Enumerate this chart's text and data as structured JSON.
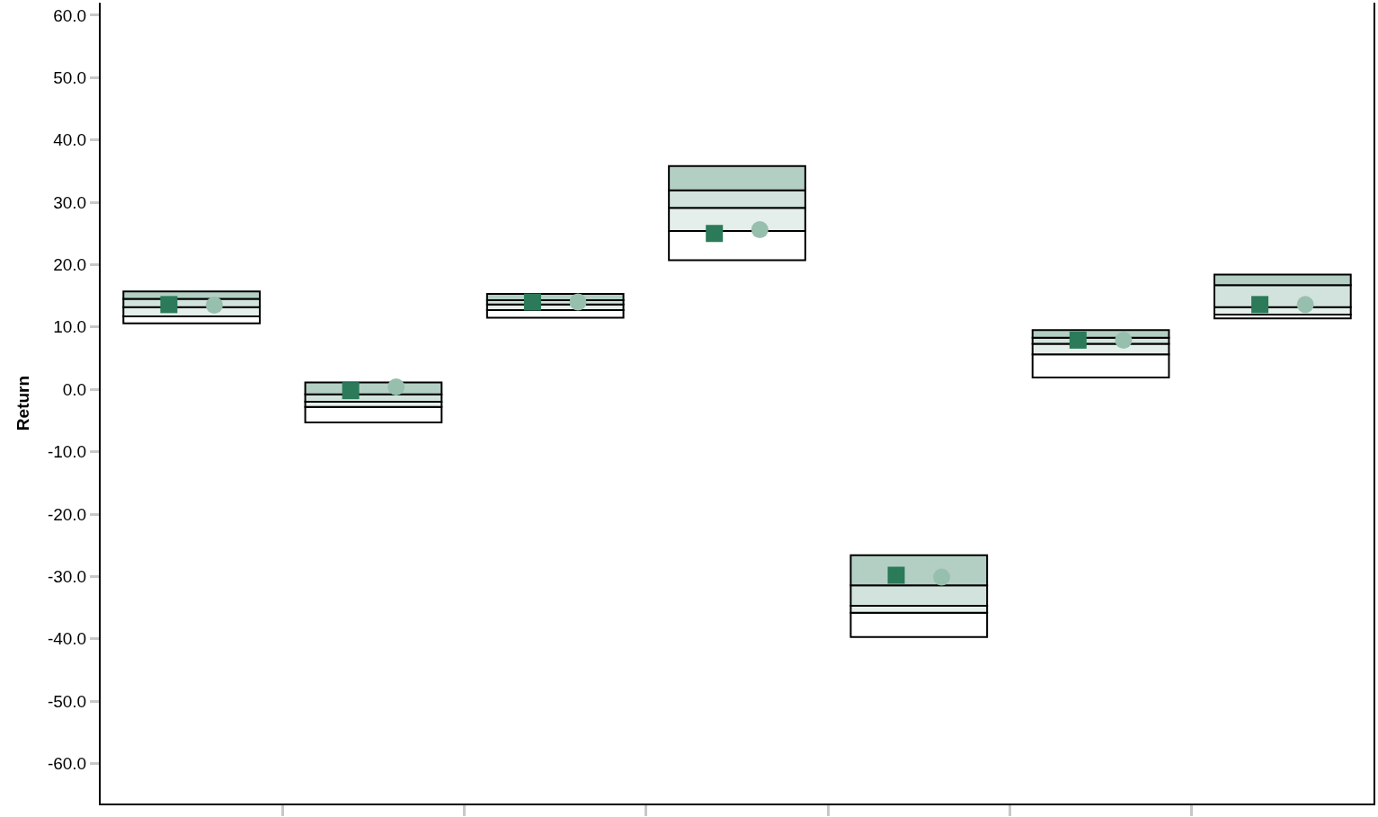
{
  "chart_data": {
    "type": "bar",
    "ylabel": "Return",
    "categories": [
      null,
      null,
      null,
      null,
      null,
      null,
      null
    ],
    "series": [
      {
        "color": "#ffffff",
        "base": [
          10.6,
          -5.3,
          11.5,
          20.7,
          -39.7,
          1.9,
          11.4
        ],
        "values": [
          1.1,
          2.5,
          1.2,
          4.7,
          3.9,
          3.7,
          0.6
        ]
      },
      {
        "color": "#e4eeea",
        "base": [
          11.7,
          -2.8,
          12.7,
          25.4,
          -35.8,
          5.6,
          12.0
        ],
        "values": [
          1.5,
          0.8,
          0.9,
          3.7,
          1.1,
          1.7,
          1.2
        ]
      },
      {
        "color": "#d2e3dd",
        "base": [
          13.2,
          -2.0,
          13.6,
          29.1,
          -34.7,
          7.3,
          13.2
        ],
        "values": [
          1.3,
          1.2,
          0.7,
          2.8,
          3.3,
          1.0,
          3.5
        ]
      },
      {
        "color": "#b3cfc4",
        "base": [
          14.5,
          -0.8,
          14.3,
          31.9,
          -31.4,
          8.3,
          16.7
        ],
        "values": [
          1.2,
          1.9,
          1.0,
          3.9,
          4.8,
          1.2,
          1.7
        ]
      },
      {
        "type": "scatter",
        "marker": "square",
        "color": "#2b7a5a",
        "values": [
          13.6,
          -0.2,
          14.0,
          25.0,
          -29.8,
          7.9,
          13.6
        ]
      },
      {
        "type": "scatter",
        "marker": "circle",
        "color": "#97bfad",
        "values": [
          13.5,
          0.4,
          14.0,
          25.6,
          -30.1,
          7.9,
          13.6
        ]
      }
    ],
    "ylim": [
      -66.4,
      62.0
    ],
    "yticks": [
      {
        "value": 60,
        "label": "60.0"
      },
      {
        "value": 50,
        "label": "50.0"
      },
      {
        "value": 40,
        "label": "40.0"
      },
      {
        "value": 30,
        "label": "30.0"
      },
      {
        "value": 20,
        "label": "20.0"
      },
      {
        "value": 10,
        "label": "10.0"
      },
      {
        "value": 0,
        "label": "0.0"
      },
      {
        "value": -10,
        "label": "-10.0"
      },
      {
        "value": -20,
        "label": "-20.0"
      },
      {
        "value": -30,
        "label": "-30.0"
      },
      {
        "value": -40,
        "label": "-40.0"
      },
      {
        "value": -50,
        "label": "-50.0"
      },
      {
        "value": -60,
        "label": "-60.0"
      }
    ]
  }
}
